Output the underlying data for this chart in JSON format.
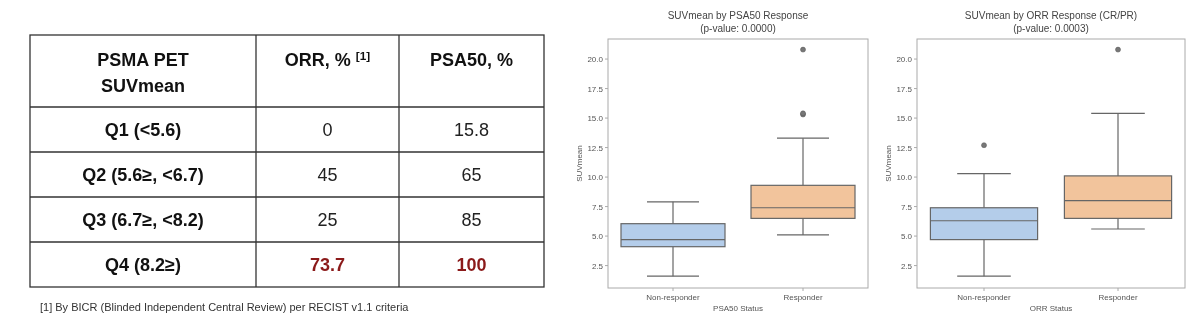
{
  "chart_data": [
    {
      "type": "other",
      "xlabel": "PSMA PET SUVmean",
      "categories": [
        "Q1 (<5.6)",
        "Q2 (5.6≥, <6.7)",
        "Q3 (6.7≥, <8.2)",
        "Q4 (8.2≥)"
      ],
      "series": [
        {
          "name": "ORR, % $^{[1]}$",
          "values": [
            0,
            45,
            25,
            73.7
          ],
          "colors": [
            "#222222",
            "#222222",
            "#222222",
            "#8b1a1a"
          ]
        },
        {
          "name": "PSA50, %",
          "values": [
            15.8,
            65,
            85,
            100
          ],
          "colors": [
            "#222222",
            "#222222",
            "#222222",
            "#8b1a1a"
          ]
        }
      ],
      "data_labels": true,
      "annotations": [
        "[1] By BICR (Blinded Independent Central Review) per RECIST v1.1 criteria"
      ]
    },
    {
      "type": "box",
      "title": "SUVmean by PSA50 Response",
      "subtitle": "(p-value: 0.0000)",
      "xlabel": "PSA50 Status",
      "ylabel": "SUVmean",
      "categories": [
        "Non-responder",
        "Responder"
      ],
      "colors": [
        "#b4cdea",
        "#f2c49c"
      ],
      "boxes": [
        {
          "low": 1.6,
          "q1": 4.1,
          "median": 4.7,
          "q3": 6.05,
          "high": 7.9
        },
        {
          "low": 5.1,
          "q1": 6.5,
          "median": 7.4,
          "q3": 9.3,
          "high": 13.3,
          "outliers": [
            15.3,
            15.4,
            20.8
          ]
        }
      ],
      "ylim": [
        0.6,
        21.7
      ],
      "yticks": [
        2.5,
        {
          "value": 5,
          "label": "5.0"
        },
        7.5,
        {
          "value": 10,
          "label": "10.0"
        },
        12.5,
        {
          "value": 15,
          "label": "15.0"
        },
        17.5,
        {
          "value": 20,
          "label": "20.0"
        }
      ],
      "grid": false
    },
    {
      "type": "box",
      "title": "SUVmean by ORR Response (CR/PR)",
      "subtitle": "(p-value: 0.0003)",
      "xlabel": "ORR Status",
      "ylabel": "SUVmean",
      "categories": [
        "Non-responder",
        "Responder"
      ],
      "colors": [
        "#b4cdea",
        "#f2c49c"
      ],
      "boxes": [
        {
          "low": 1.6,
          "q1": 4.7,
          "median": 6.3,
          "q3": 7.4,
          "high": 10.3,
          "outliers": [
            12.7
          ]
        },
        {
          "low": 5.6,
          "q1": 6.5,
          "median": 8.0,
          "q3": 10.1,
          "high": 15.4,
          "outliers": [
            20.8
          ]
        }
      ],
      "ylim": [
        0.6,
        21.7
      ],
      "yticks": [
        2.5,
        {
          "value": 5,
          "label": "5.0"
        },
        7.5,
        {
          "value": 10,
          "label": "10.0"
        },
        12.5,
        {
          "value": 15,
          "label": "15.0"
        },
        17.5,
        {
          "value": 20,
          "label": "20.0"
        }
      ],
      "grid": false
    }
  ]
}
